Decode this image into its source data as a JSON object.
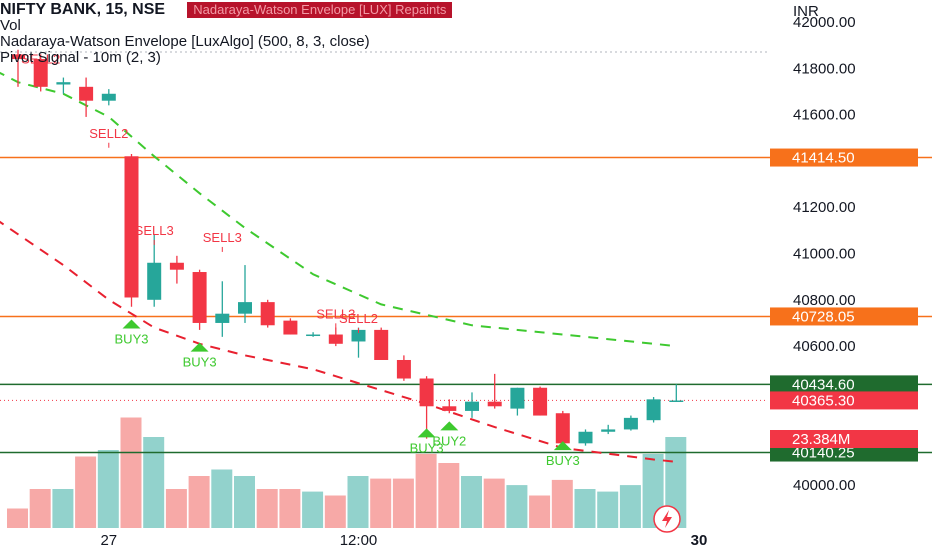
{
  "legend": {
    "symbol_line": "NIFTY BANK, 15, NSE",
    "repaint_badge": "Nadaraya-Watson Envelope [LUX] Repaints",
    "vol_line": "Vol",
    "nwe_line": "Nadaraya-Watson Envelope [LuxAlgo] (500, 8, 3, close)",
    "pivot_line": "Pivot Signal - 10m (2, 3)"
  },
  "colors": {
    "up": "#26a69a",
    "down": "#f23645",
    "vol_up": "#92d2cc",
    "vol_down": "#f7a9a7",
    "envelope_upper": "#3ec92f",
    "envelope_lower": "#e8202f",
    "level_orange": "#f7711b",
    "level_green": "#1f6b2e",
    "tag_red": "#f23645",
    "tag_orange": "#f7711b",
    "tag_green": "#1f6b2e",
    "buy_signal": "#3ec92f",
    "sell_signal": "#f23645"
  },
  "chart_data": {
    "type": "candlestick",
    "title": "NIFTY BANK, 15, NSE",
    "currency": "INR",
    "y_axis_ticks": [
      42000,
      41800,
      41600,
      41200,
      41000,
      40800,
      40600,
      40000
    ],
    "y_axis_tick_labels": [
      "42000.00",
      "41800.00",
      "41600.00",
      "41200.00",
      "41000.00",
      "40800.00",
      "40600.00",
      "40000.00"
    ],
    "ylim": [
      39820,
      42050
    ],
    "x_axis_labels": [
      {
        "bar": 4,
        "label": "27"
      },
      {
        "bar": 15,
        "label": "12:00"
      },
      {
        "bar": 30,
        "label": "30"
      }
    ],
    "candles": [
      {
        "o": 41860,
        "h": 41880,
        "l": 41720,
        "c": 41840
      },
      {
        "o": 41840,
        "h": 41860,
        "l": 41700,
        "c": 41720
      },
      {
        "o": 41730,
        "h": 41760,
        "l": 41690,
        "c": 41740
      },
      {
        "o": 41720,
        "h": 41760,
        "l": 41590,
        "c": 41660
      },
      {
        "o": 41660,
        "h": 41710,
        "l": 41640,
        "c": 41690
      },
      {
        "o": 41420,
        "h": 41430,
        "l": 40770,
        "c": 40810
      },
      {
        "o": 40800,
        "h": 41080,
        "l": 40770,
        "c": 40960
      },
      {
        "o": 40960,
        "h": 40990,
        "l": 40870,
        "c": 40930
      },
      {
        "o": 40920,
        "h": 40930,
        "l": 40670,
        "c": 40700
      },
      {
        "o": 40700,
        "h": 40880,
        "l": 40640,
        "c": 40740
      },
      {
        "o": 40740,
        "h": 40950,
        "l": 40700,
        "c": 40790
      },
      {
        "o": 40790,
        "h": 40800,
        "l": 40680,
        "c": 40690
      },
      {
        "o": 40710,
        "h": 40720,
        "l": 40650,
        "c": 40650
      },
      {
        "o": 40650,
        "h": 40660,
        "l": 40640,
        "c": 40650
      },
      {
        "o": 40650,
        "h": 40680,
        "l": 40600,
        "c": 40610
      },
      {
        "o": 40620,
        "h": 40680,
        "l": 40550,
        "c": 40670
      },
      {
        "o": 40670,
        "h": 40680,
        "l": 40550,
        "c": 40540
      },
      {
        "o": 40540,
        "h": 40560,
        "l": 40450,
        "c": 40460
      },
      {
        "o": 40460,
        "h": 40470,
        "l": 40200,
        "c": 40340
      },
      {
        "o": 40340,
        "h": 40370,
        "l": 40310,
        "c": 40320
      },
      {
        "o": 40320,
        "h": 40400,
        "l": 40290,
        "c": 40360
      },
      {
        "o": 40360,
        "h": 40480,
        "l": 40330,
        "c": 40340
      },
      {
        "o": 40330,
        "h": 40420,
        "l": 40300,
        "c": 40420
      },
      {
        "o": 40420,
        "h": 40425,
        "l": 40300,
        "c": 40300
      },
      {
        "o": 40310,
        "h": 40320,
        "l": 40160,
        "c": 40180
      },
      {
        "o": 40180,
        "h": 40240,
        "l": 40170,
        "c": 40230
      },
      {
        "o": 40230,
        "h": 40260,
        "l": 40220,
        "c": 40240
      },
      {
        "o": 40240,
        "h": 40300,
        "l": 40235,
        "c": 40290
      },
      {
        "o": 40280,
        "h": 40380,
        "l": 40270,
        "c": 40370
      },
      {
        "o": 40365,
        "h": 40435,
        "l": 40360,
        "c": 40365
      }
    ],
    "volume_relative": [
      0.15,
      0.3,
      0.3,
      0.55,
      0.6,
      0.85,
      0.7,
      0.3,
      0.4,
      0.45,
      0.4,
      0.3,
      0.3,
      0.28,
      0.25,
      0.4,
      0.38,
      0.38,
      0.57,
      0.5,
      0.4,
      0.38,
      0.33,
      0.25,
      0.37,
      0.3,
      0.28,
      0.33,
      0.57,
      0.7
    ],
    "envelope_upper": {
      "name": "upper",
      "points": [
        [
          -1,
          41790
        ],
        [
          0,
          41740
        ],
        [
          2,
          41690
        ],
        [
          4,
          41590
        ],
        [
          6,
          41420
        ],
        [
          8,
          41260
        ],
        [
          10,
          41110
        ],
        [
          13,
          40910
        ],
        [
          16,
          40780
        ],
        [
          20,
          40690
        ],
        [
          24,
          40650
        ],
        [
          28,
          40610
        ],
        [
          29,
          40600
        ]
      ]
    },
    "envelope_lower": {
      "name": "lower",
      "points": [
        [
          -1,
          41150
        ],
        [
          2,
          40950
        ],
        [
          4,
          40800
        ],
        [
          6,
          40680
        ],
        [
          8,
          40610
        ],
        [
          10,
          40560
        ],
        [
          13,
          40500
        ],
        [
          16,
          40410
        ],
        [
          18,
          40350
        ],
        [
          21,
          40250
        ],
        [
          24,
          40160
        ],
        [
          28,
          40110
        ],
        [
          29,
          40100
        ]
      ]
    },
    "horizontal_levels": [
      {
        "value": 41414.5,
        "label": "41414.50",
        "style": "orange"
      },
      {
        "value": 40728.05,
        "label": "40728.05",
        "style": "orange"
      },
      {
        "value": 40434.6,
        "label": "40434.60",
        "style": "green"
      },
      {
        "value": 40140.25,
        "label": "40140.25",
        "style": "green"
      }
    ],
    "current_price": {
      "value": 40365.3,
      "label": "40365.30"
    },
    "volume_tag": {
      "label": "23.384M"
    },
    "signals": [
      {
        "bar": 1,
        "text": "SELL2",
        "type": "sell",
        "value": 41820
      },
      {
        "bar": 4,
        "text": "SELL2",
        "type": "sell",
        "value": 41500
      },
      {
        "bar": 6,
        "text": "SELL3",
        "type": "sell",
        "value": 41080
      },
      {
        "bar": 9,
        "text": "SELL3",
        "type": "sell",
        "value": 41050
      },
      {
        "bar": 14,
        "text": "SELL3",
        "type": "sell",
        "value": 40720
      },
      {
        "bar": 15,
        "text": "SELL2",
        "type": "sell",
        "value": 40700
      },
      {
        "bar": 5,
        "text": "BUY3",
        "type": "buy",
        "value": 40650
      },
      {
        "bar": 8,
        "text": "BUY3",
        "type": "buy",
        "value": 40550
      },
      {
        "bar": 19,
        "text": "BUY2",
        "type": "buy",
        "value": 40210
      },
      {
        "bar": 18,
        "text": "BUY3",
        "type": "buy",
        "value": 40180
      },
      {
        "bar": 24,
        "text": "BUY3",
        "type": "buy",
        "value": 40125
      }
    ]
  }
}
